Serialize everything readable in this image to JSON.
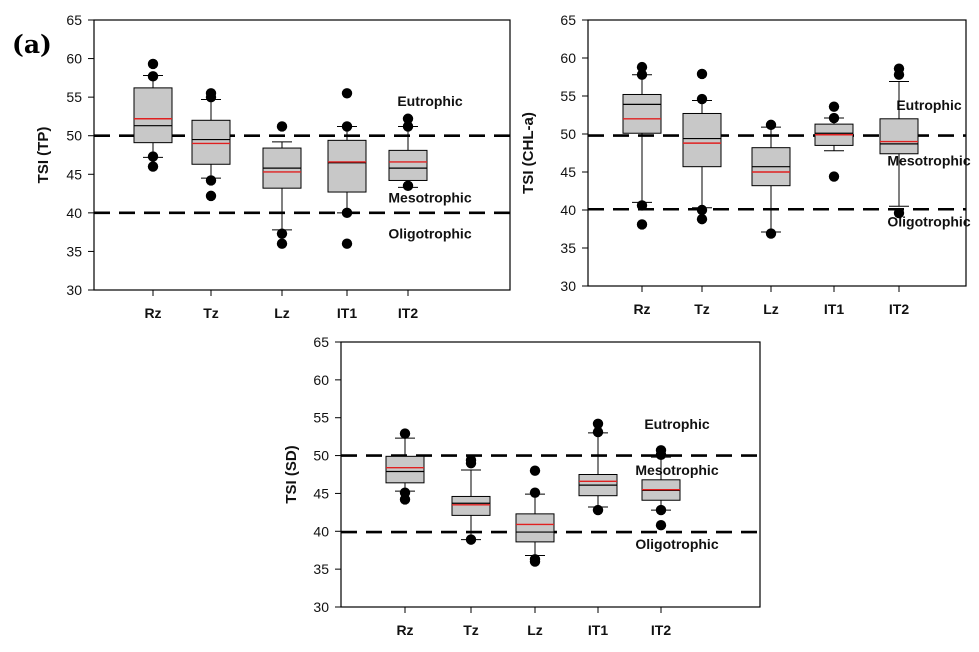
{
  "figure": {
    "label": "(a)"
  },
  "chart_data": [
    {
      "type": "box",
      "title": "",
      "xlabel": "",
      "ylabel": "TSI (TP)",
      "ylim": [
        30,
        65
      ],
      "yticks": [
        30,
        35,
        40,
        45,
        50,
        55,
        60,
        65
      ],
      "categories": [
        "Rz",
        "Tz",
        "Lz",
        "IT1",
        "IT2"
      ],
      "reference_lines": [
        50,
        40
      ],
      "zone_labels": [
        {
          "text": "Eutrophic",
          "y": 54.5
        },
        {
          "text": "Mesotrophic",
          "y": 42
        },
        {
          "text": "Oligotrophic",
          "y": 37.3
        }
      ],
      "boxes": [
        {
          "category": "Rz",
          "whisker_low": 47.2,
          "q1": 49.1,
          "median": 51.3,
          "mean": 52.2,
          "q3": 56.2,
          "whisker_high": 57.8,
          "outliers": [
            46.0,
            47.3,
            57.7,
            59.3
          ]
        },
        {
          "category": "Tz",
          "whisker_low": 44.5,
          "q1": 46.3,
          "median": 49.5,
          "mean": 49.0,
          "q3": 52.0,
          "whisker_high": 54.7,
          "outliers": [
            42.2,
            44.2,
            55.0,
            55.5
          ]
        },
        {
          "category": "Lz",
          "whisker_low": 37.8,
          "q1": 43.2,
          "median": 45.8,
          "mean": 45.3,
          "q3": 48.4,
          "whisker_high": 49.2,
          "outliers": [
            36.0,
            37.3,
            51.2
          ]
        },
        {
          "category": "IT1",
          "whisker_low": 40.0,
          "q1": 42.7,
          "median": 46.5,
          "mean": 46.6,
          "q3": 49.4,
          "whisker_high": 51.2,
          "outliers": [
            36.0,
            40.0,
            51.2,
            55.5
          ]
        },
        {
          "category": "IT2",
          "whisker_low": 43.3,
          "q1": 44.2,
          "median": 45.8,
          "mean": 46.6,
          "q3": 48.1,
          "whisker_high": 51.2,
          "outliers": [
            43.5,
            51.2,
            52.2
          ]
        }
      ]
    },
    {
      "type": "box",
      "title": "",
      "xlabel": "",
      "ylabel": "TSI (CHL-a)",
      "ylim": [
        30,
        65
      ],
      "yticks": [
        30,
        35,
        40,
        45,
        50,
        55,
        60,
        65
      ],
      "categories": [
        "Rz",
        "Tz",
        "Lz",
        "IT1",
        "IT2"
      ],
      "reference_lines": [
        49.8,
        40.1
      ],
      "zone_labels": [
        {
          "text": "Eutrophic",
          "y": 53.8
        },
        {
          "text": "Mesotrophic",
          "y": 46.5
        },
        {
          "text": "Oligotrophic",
          "y": 38.5
        }
      ],
      "boxes": [
        {
          "category": "Rz",
          "whisker_low": 41.0,
          "q1": 50.1,
          "median": 53.9,
          "mean": 52.0,
          "q3": 55.2,
          "whisker_high": 57.8,
          "outliers": [
            38.1,
            40.6,
            57.8,
            58.8
          ]
        },
        {
          "category": "Tz",
          "whisker_low": 40.3,
          "q1": 45.7,
          "median": 49.4,
          "mean": 48.8,
          "q3": 52.7,
          "whisker_high": 54.4,
          "outliers": [
            38.8,
            40.0,
            54.6,
            57.9
          ]
        },
        {
          "category": "Lz",
          "whisker_low": 37.1,
          "q1": 43.2,
          "median": 45.7,
          "mean": 45.0,
          "q3": 48.2,
          "whisker_high": 50.9,
          "outliers": [
            36.9,
            51.2
          ]
        },
        {
          "category": "IT1",
          "whisker_low": 47.8,
          "q1": 48.5,
          "median": 50.1,
          "mean": 49.9,
          "q3": 51.3,
          "whisker_high": 52.1,
          "outliers": [
            44.4,
            52.1,
            53.6
          ]
        },
        {
          "category": "IT2",
          "whisker_low": 40.5,
          "q1": 47.4,
          "median": 48.7,
          "mean": 49.0,
          "q3": 52.0,
          "whisker_high": 56.9,
          "outliers": [
            39.6,
            57.8,
            58.6
          ]
        }
      ]
    },
    {
      "type": "box",
      "title": "",
      "xlabel": "",
      "ylabel": "TSI (SD)",
      "ylim": [
        30,
        65
      ],
      "yticks": [
        30,
        35,
        40,
        45,
        50,
        55,
        60,
        65
      ],
      "categories": [
        "Rz",
        "Tz",
        "Lz",
        "IT1",
        "IT2"
      ],
      "reference_lines": [
        50,
        39.9
      ],
      "zone_labels": [
        {
          "text": "Eutrophic",
          "y": 54.2
        },
        {
          "text": "Mesotrophic",
          "y": 48.1
        },
        {
          "text": "Oligotrophic",
          "y": 38.3
        }
      ],
      "boxes": [
        {
          "category": "Rz",
          "whisker_low": 45.3,
          "q1": 46.4,
          "median": 47.9,
          "mean": 48.4,
          "q3": 49.9,
          "whisker_high": 52.3,
          "outliers": [
            44.2,
            45.1,
            52.9
          ]
        },
        {
          "category": "Tz",
          "whisker_low": 38.9,
          "q1": 42.1,
          "median": 43.7,
          "mean": 43.5,
          "q3": 44.6,
          "whisker_high": 48.1,
          "outliers": [
            38.9,
            49.0,
            49.4
          ]
        },
        {
          "category": "Lz",
          "whisker_low": 36.8,
          "q1": 38.6,
          "median": 39.9,
          "mean": 40.9,
          "q3": 42.3,
          "whisker_high": 44.9,
          "outliers": [
            36.0,
            36.3,
            45.1,
            48.0
          ]
        },
        {
          "category": "IT1",
          "whisker_low": 43.2,
          "q1": 44.7,
          "median": 46.1,
          "mean": 46.6,
          "q3": 47.5,
          "whisker_high": 53.0,
          "outliers": [
            42.8,
            53.1,
            54.2
          ]
        },
        {
          "category": "IT2",
          "whisker_low": 42.8,
          "q1": 44.1,
          "median": 45.4,
          "mean": 45.5,
          "q3": 46.8,
          "whisker_high": 49.8,
          "outliers": [
            40.8,
            42.8,
            50.1,
            50.7
          ]
        }
      ]
    }
  ]
}
